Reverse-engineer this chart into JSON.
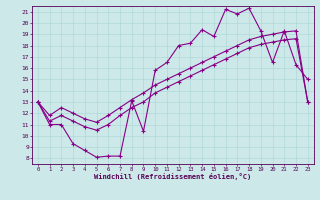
{
  "xlabel": "Windchill (Refroidissement éolien,°C)",
  "bg_color": "#cce8e8",
  "line_color": "#880088",
  "xlim": [
    -0.5,
    23.5
  ],
  "ylim": [
    7.5,
    21.5
  ],
  "xticks": [
    0,
    1,
    2,
    3,
    4,
    5,
    6,
    7,
    8,
    9,
    10,
    11,
    12,
    13,
    14,
    15,
    16,
    17,
    18,
    19,
    20,
    21,
    22,
    23
  ],
  "yticks": [
    8,
    9,
    10,
    11,
    12,
    13,
    14,
    15,
    16,
    17,
    18,
    19,
    20,
    21
  ],
  "main_x": [
    0,
    1,
    2,
    3,
    4,
    5,
    6,
    7,
    8,
    9,
    10,
    11,
    12,
    13,
    14,
    15,
    16,
    17,
    18,
    19,
    20,
    21,
    22,
    23
  ],
  "main_y": [
    13,
    11,
    11,
    9.3,
    8.7,
    8.1,
    8.2,
    8.2,
    13.1,
    10.4,
    15.8,
    16.5,
    18.0,
    18.2,
    19.4,
    18.8,
    21.2,
    20.8,
    21.3,
    19.3,
    16.5,
    19.3,
    16.3,
    15.0
  ],
  "upper_x": [
    0,
    1,
    2,
    3,
    4,
    5,
    6,
    7,
    8,
    9,
    10,
    11,
    12,
    13,
    14,
    15,
    16,
    17,
    18,
    19,
    20,
    21,
    22,
    23
  ],
  "upper_y": [
    13,
    11.8,
    12.5,
    12.0,
    11.5,
    11.2,
    11.8,
    12.5,
    13.2,
    13.8,
    14.5,
    15.0,
    15.5,
    16.0,
    16.5,
    17.0,
    17.5,
    18.0,
    18.5,
    18.8,
    19.0,
    19.2,
    19.3,
    13.0
  ],
  "lower_x": [
    0,
    1,
    2,
    3,
    4,
    5,
    6,
    7,
    8,
    9,
    10,
    11,
    12,
    13,
    14,
    15,
    16,
    17,
    18,
    19,
    20,
    21,
    22,
    23
  ],
  "lower_y": [
    13,
    11.3,
    11.8,
    11.3,
    10.8,
    10.5,
    11.0,
    11.8,
    12.5,
    13.0,
    13.8,
    14.3,
    14.8,
    15.3,
    15.8,
    16.3,
    16.8,
    17.3,
    17.8,
    18.1,
    18.3,
    18.5,
    18.6,
    13.0
  ]
}
